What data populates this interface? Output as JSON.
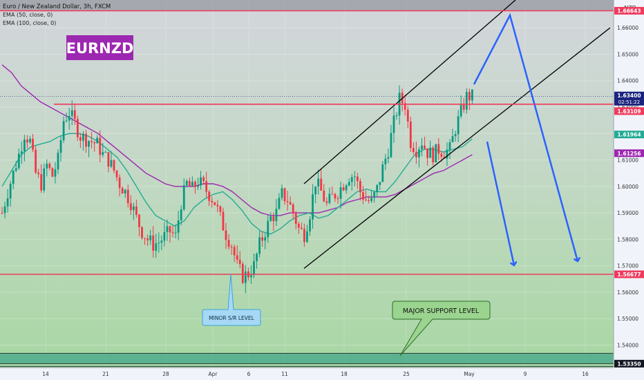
{
  "header": {
    "title": "Euro / New Zealand Dollar, 3h, FXCM",
    "indicators": [
      "EMA (50, close, 0)",
      "EMA (100, close, 0)"
    ],
    "currency": "NZD"
  },
  "annotations": {
    "symbol_badge": "EURNZD",
    "minor_label": "MINOR S/R LEVEL",
    "major_label": "MAJOR SUPPORT LEVEL"
  },
  "colors": {
    "bull": "#089981",
    "bear": "#f23645",
    "ema50": "#22ab94",
    "ema100": "#9c27b0",
    "level": "#ef3a5d",
    "arrow": "#2962ff",
    "badge": "#9c27b0"
  },
  "chart_data": {
    "type": "candlestick",
    "symbol": "EURNZD",
    "timeframe": "3h",
    "x_ticks": [
      "14",
      "21",
      "28",
      "Apr",
      "6",
      "11",
      "18",
      "25",
      "May",
      "9",
      "16"
    ],
    "y_ticks": [
      "1.54000",
      "1.55000",
      "1.56000",
      "1.57000",
      "1.58000",
      "1.59000",
      "1.60000",
      "1.61000",
      "1.62000",
      "1.63000",
      "1.64000",
      "1.65000",
      "1.66000"
    ],
    "ylim": [
      1.5315,
      1.6705
    ],
    "current_price": {
      "value": "1.63400",
      "countdown": "02:51:22"
    },
    "horizontal_levels": [
      {
        "value": 1.66643,
        "label": "1.66643"
      },
      {
        "value": 1.63109,
        "label": "1.63109"
      },
      {
        "value": 1.56677,
        "label": "1.56677"
      },
      {
        "value": 1.5335,
        "label": "1.53350"
      }
    ],
    "ema_labels": [
      {
        "name": "EMA 50",
        "value": "1.61964"
      },
      {
        "name": "EMA 100",
        "value": "1.61256"
      }
    ],
    "ema50_path": [
      [
        0,
        1.6
      ],
      [
        3,
        1.606
      ],
      [
        6,
        1.612
      ],
      [
        9,
        1.615
      ],
      [
        12,
        1.616
      ],
      [
        15,
        1.617
      ],
      [
        18,
        1.619
      ],
      [
        21,
        1.62
      ],
      [
        24,
        1.62
      ],
      [
        27,
        1.619
      ],
      [
        30,
        1.617
      ],
      [
        33,
        1.614
      ],
      [
        36,
        1.611
      ],
      [
        39,
        1.606
      ],
      [
        42,
        1.6
      ],
      [
        45,
        1.594
      ],
      [
        48,
        1.589
      ],
      [
        51,
        1.587
      ],
      [
        54,
        1.585
      ],
      [
        57,
        1.587
      ],
      [
        60,
        1.592
      ],
      [
        63,
        1.595
      ],
      [
        66,
        1.597
      ],
      [
        69,
        1.598
      ],
      [
        72,
        1.595
      ],
      [
        75,
        1.591
      ],
      [
        78,
        1.586
      ],
      [
        81,
        1.583
      ],
      [
        84,
        1.582
      ],
      [
        87,
        1.584
      ],
      [
        90,
        1.587
      ],
      [
        93,
        1.589
      ],
      [
        96,
        1.59
      ],
      [
        99,
        1.588
      ],
      [
        102,
        1.589
      ],
      [
        105,
        1.592
      ],
      [
        108,
        1.595
      ],
      [
        111,
        1.598
      ],
      [
        114,
        1.599
      ],
      [
        117,
        1.598
      ],
      [
        120,
        1.598
      ],
      [
        123,
        1.602
      ],
      [
        126,
        1.607
      ],
      [
        129,
        1.612
      ],
      [
        132,
        1.614
      ],
      [
        135,
        1.614
      ],
      [
        138,
        1.613
      ],
      [
        141,
        1.614
      ],
      [
        144,
        1.615
      ],
      [
        147,
        1.618
      ]
    ],
    "ema100_path": [
      [
        0,
        1.646
      ],
      [
        3,
        1.643
      ],
      [
        6,
        1.638
      ],
      [
        9,
        1.635
      ],
      [
        12,
        1.632
      ],
      [
        15,
        1.63
      ],
      [
        18,
        1.628
      ],
      [
        21,
        1.626
      ],
      [
        24,
        1.624
      ],
      [
        27,
        1.622
      ],
      [
        30,
        1.62
      ],
      [
        33,
        1.617
      ],
      [
        36,
        1.614
      ],
      [
        39,
        1.611
      ],
      [
        42,
        1.608
      ],
      [
        45,
        1.605
      ],
      [
        48,
        1.603
      ],
      [
        51,
        1.601
      ],
      [
        54,
        1.6
      ],
      [
        57,
        1.6
      ],
      [
        60,
        1.6
      ],
      [
        63,
        1.601
      ],
      [
        66,
        1.601
      ],
      [
        69,
        1.6
      ],
      [
        72,
        1.598
      ],
      [
        75,
        1.595
      ],
      [
        78,
        1.592
      ],
      [
        81,
        1.59
      ],
      [
        84,
        1.589
      ],
      [
        87,
        1.589
      ],
      [
        90,
        1.59
      ],
      [
        93,
        1.59
      ],
      [
        96,
        1.59
      ],
      [
        99,
        1.59
      ],
      [
        102,
        1.591
      ],
      [
        105,
        1.592
      ],
      [
        108,
        1.594
      ],
      [
        111,
        1.595
      ],
      [
        114,
        1.596
      ],
      [
        117,
        1.596
      ],
      [
        120,
        1.596
      ],
      [
        123,
        1.597
      ],
      [
        126,
        1.599
      ],
      [
        129,
        1.601
      ],
      [
        132,
        1.603
      ],
      [
        135,
        1.605
      ],
      [
        138,
        1.606
      ],
      [
        141,
        1.608
      ],
      [
        144,
        1.61
      ],
      [
        147,
        1.612
      ]
    ],
    "close_path": [
      [
        0,
        1.59
      ],
      [
        2,
        1.598
      ],
      [
        4,
        1.605
      ],
      [
        6,
        1.612
      ],
      [
        8,
        1.62
      ],
      [
        10,
        1.617
      ],
      [
        12,
        1.605
      ],
      [
        14,
        1.601
      ],
      [
        16,
        1.608
      ],
      [
        18,
        1.604
      ],
      [
        20,
        1.61
      ],
      [
        22,
        1.625
      ],
      [
        24,
        1.628
      ],
      [
        26,
        1.624
      ],
      [
        28,
        1.619
      ],
      [
        30,
        1.618
      ],
      [
        32,
        1.617
      ],
      [
        34,
        1.616
      ],
      [
        36,
        1.612
      ],
      [
        38,
        1.61
      ],
      [
        40,
        1.606
      ],
      [
        42,
        1.601
      ],
      [
        44,
        1.598
      ],
      [
        46,
        1.594
      ],
      [
        48,
        1.588
      ],
      [
        50,
        1.583
      ],
      [
        52,
        1.58
      ],
      [
        54,
        1.578
      ],
      [
        56,
        1.579
      ],
      [
        58,
        1.581
      ],
      [
        60,
        1.583
      ],
      [
        62,
        1.581
      ],
      [
        64,
        1.594
      ],
      [
        66,
        1.601
      ],
      [
        68,
        1.599
      ],
      [
        70,
        1.602
      ],
      [
        72,
        1.6
      ],
      [
        74,
        1.597
      ],
      [
        76,
        1.594
      ],
      [
        78,
        1.588
      ],
      [
        80,
        1.582
      ],
      [
        82,
        1.578
      ],
      [
        84,
        1.57
      ],
      [
        86,
        1.566
      ],
      [
        88,
        1.567
      ],
      [
        90,
        1.57
      ],
      [
        92,
        1.578
      ],
      [
        94,
        1.583
      ],
      [
        96,
        1.588
      ],
      [
        98,
        1.59
      ],
      [
        100,
        1.597
      ],
      [
        102,
        1.595
      ],
      [
        104,
        1.59
      ],
      [
        106,
        1.584
      ],
      [
        108,
        1.582
      ],
      [
        110,
        1.59
      ],
      [
        112,
        1.602
      ],
      [
        114,
        1.598
      ],
      [
        116,
        1.593
      ],
      [
        118,
        1.596
      ],
      [
        120,
        1.598
      ],
      [
        122,
        1.601
      ],
      [
        124,
        1.604
      ],
      [
        126,
        1.604
      ],
      [
        128,
        1.598
      ],
      [
        130,
        1.595
      ],
      [
        132,
        1.594
      ],
      [
        134,
        1.599
      ],
      [
        136,
        1.607
      ],
      [
        138,
        1.614
      ],
      [
        140,
        1.624
      ],
      [
        142,
        1.633
      ],
      [
        144,
        1.631
      ],
      [
        146,
        1.617
      ],
      [
        148,
        1.614
      ],
      [
        150,
        1.617
      ],
      [
        152,
        1.613
      ],
      [
        154,
        1.612
      ],
      [
        156,
        1.614
      ],
      [
        158,
        1.613
      ],
      [
        160,
        1.614
      ],
      [
        162,
        1.622
      ],
      [
        164,
        1.628
      ],
      [
        166,
        1.634
      ],
      [
        168,
        1.634
      ]
    ],
    "channel": {
      "upper": [
        [
          1.601,
          1.6705
        ],
        [
          440,
          746
        ]
      ],
      "lower": [
        [
          1.569,
          1.66
        ],
        [
          440,
          883
        ]
      ]
    },
    "projection_arrows": 3
  }
}
